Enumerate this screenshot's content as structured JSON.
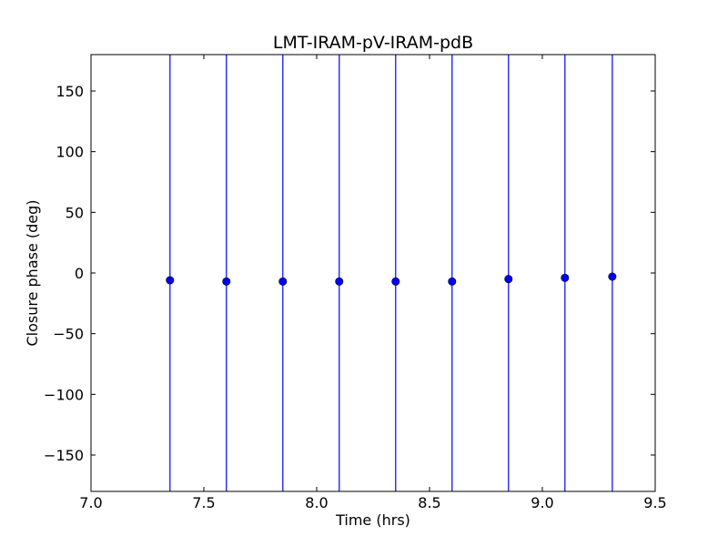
{
  "chart_data": {
    "type": "scatter",
    "title": "LMT-IRAM-pV-IRAM-pdB",
    "xlabel": "Time (hrs)",
    "ylabel": "Closure phase (deg)",
    "xlim": [
      7.0,
      9.5
    ],
    "ylim": [
      -180,
      180
    ],
    "xticks": [
      7.0,
      7.5,
      8.0,
      8.5,
      9.0,
      9.5
    ],
    "xtick_labels": [
      "7.0",
      "7.5",
      "8.0",
      "8.5",
      "9.0",
      "9.5"
    ],
    "yticks": [
      150,
      100,
      50,
      0,
      -50,
      -100,
      -150
    ],
    "ytick_labels": [
      "150",
      "100",
      "50",
      "0",
      "−50",
      "−100",
      "−150"
    ],
    "grid": false,
    "series": [
      {
        "color": "#0000ff",
        "x": [
          7.35,
          7.6,
          7.85,
          8.1,
          8.35,
          8.6,
          8.85,
          9.1,
          9.31
        ],
        "y": [
          -6,
          -7,
          -7,
          -7,
          -7,
          -7,
          -5,
          -4,
          -3
        ],
        "yerr_low": [
          -180,
          -180,
          -180,
          -180,
          -180,
          -180,
          -180,
          -180,
          -180
        ],
        "yerr_high": [
          180,
          180,
          180,
          180,
          180,
          180,
          180,
          180,
          180
        ]
      }
    ]
  }
}
